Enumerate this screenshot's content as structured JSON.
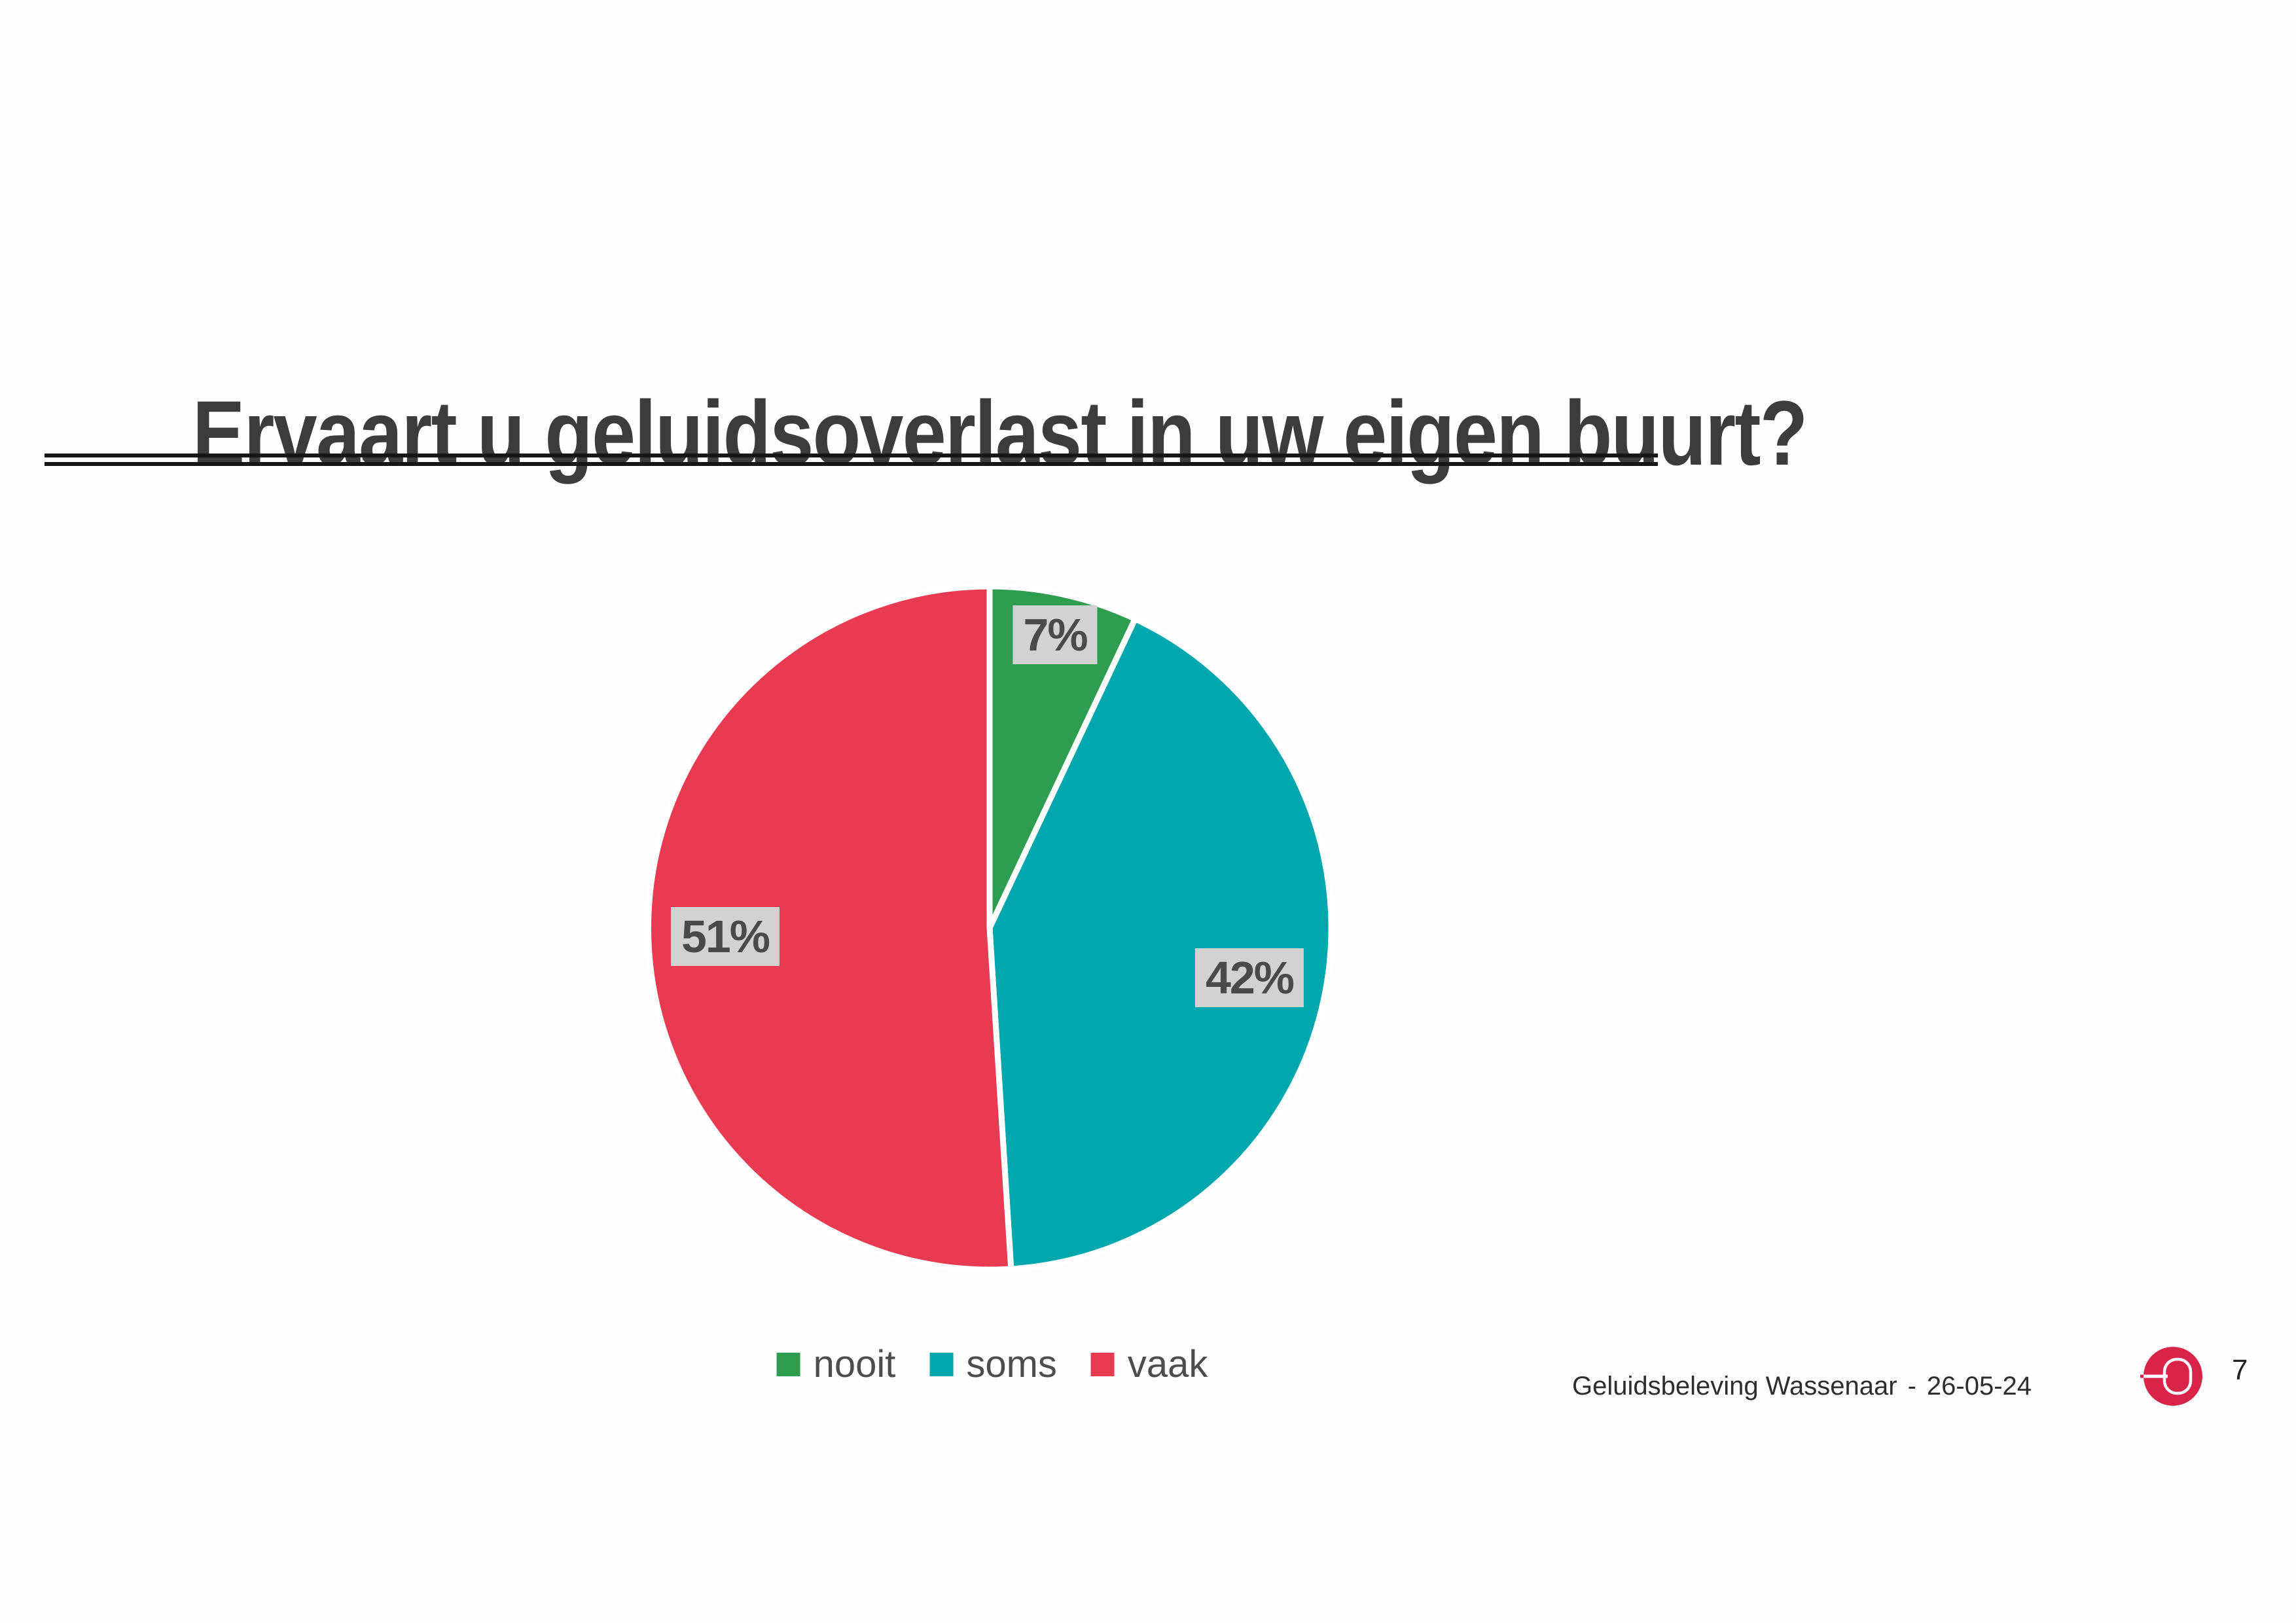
{
  "page": {
    "title": "Ervaart u geluidsoverlast in uw eigen buurt?",
    "footer": {
      "text": "Geluidsbeleving Wassenaar",
      "separator": "-",
      "date": "26-05-24"
    },
    "page_number": "7",
    "logo_color": "#d92349"
  },
  "chart_data": {
    "type": "pie",
    "categories": [
      "nooit",
      "soms",
      "vaak"
    ],
    "values": [
      7,
      42,
      51
    ],
    "labels": [
      "7%",
      "42%",
      "51%"
    ],
    "colors": [
      "#2f9d4f",
      "#00a7ad",
      "#e83a51"
    ],
    "title": "",
    "start_angle_deg": 0,
    "direction": "clockwise",
    "legend_position": "bottom",
    "label_box_bg": "#d2d2d2",
    "label_text_color": "#4a4a4a",
    "slice_border_color": "#ffffff"
  }
}
